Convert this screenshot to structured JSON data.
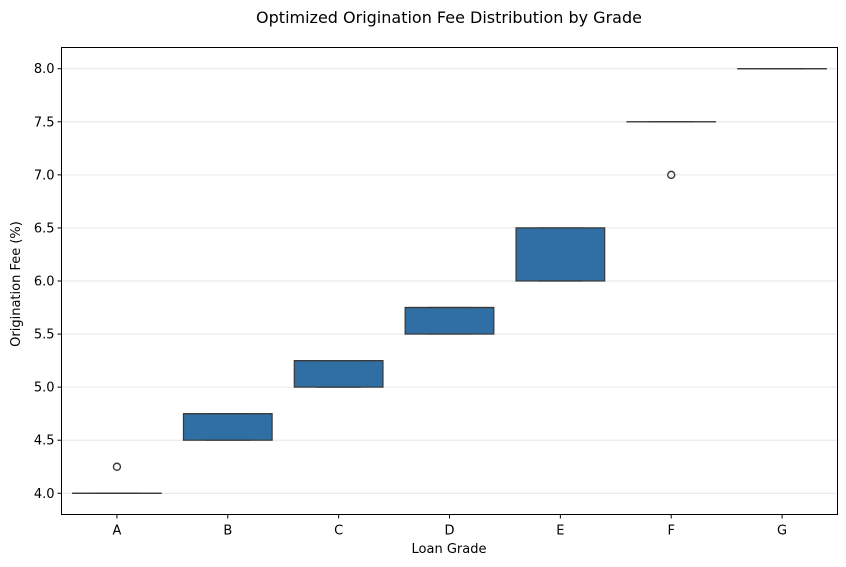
{
  "chart_data": {
    "type": "box",
    "title": "Optimized Origination Fee Distribution by Grade",
    "xlabel": "Loan Grade",
    "ylabel": "Origination Fee (%)",
    "ylim": [
      3.8,
      8.2
    ],
    "yticks": [
      "4.0",
      "4.5",
      "5.0",
      "5.5",
      "6.0",
      "6.5",
      "7.0",
      "7.5",
      "8.0"
    ],
    "grid": "horizontal",
    "box_color": "#2f6fa3",
    "edge_color": "#3a3a3a",
    "categories": [
      "A",
      "B",
      "C",
      "D",
      "E",
      "F",
      "G"
    ],
    "boxes": [
      {
        "category": "A",
        "whisker_low": 4.0,
        "q1": 4.0,
        "median": 4.0,
        "q3": 4.0,
        "whisker_high": 4.0,
        "outliers": [
          4.25
        ]
      },
      {
        "category": "B",
        "whisker_low": 4.5,
        "q1": 4.5,
        "median": 4.75,
        "q3": 4.75,
        "whisker_high": 4.75,
        "outliers": []
      },
      {
        "category": "C",
        "whisker_low": 5.0,
        "q1": 5.0,
        "median": 5.25,
        "q3": 5.25,
        "whisker_high": 5.25,
        "outliers": []
      },
      {
        "category": "D",
        "whisker_low": 5.5,
        "q1": 5.5,
        "median": 5.75,
        "q3": 5.75,
        "whisker_high": 5.75,
        "outliers": []
      },
      {
        "category": "E",
        "whisker_low": 6.0,
        "q1": 6.0,
        "median": 6.5,
        "q3": 6.5,
        "whisker_high": 6.5,
        "outliers": []
      },
      {
        "category": "F",
        "whisker_low": 7.5,
        "q1": 7.5,
        "median": 7.5,
        "q3": 7.5,
        "whisker_high": 7.5,
        "outliers": [
          7.0
        ]
      },
      {
        "category": "G",
        "whisker_low": 8.0,
        "q1": 8.0,
        "median": 8.0,
        "q3": 8.0,
        "whisker_high": 8.0,
        "outliers": []
      }
    ]
  }
}
